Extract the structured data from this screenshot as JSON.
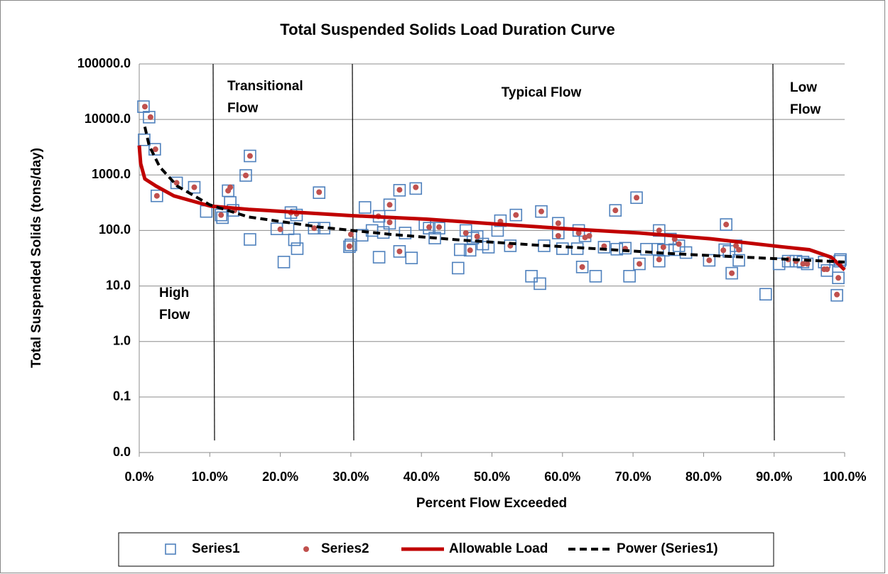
{
  "chart_data": {
    "type": "scatter",
    "title": "Total Suspended Solids Load Duration Curve",
    "x_label": "Percent Flow Exceeded",
    "y_label": "Total Suspended Solids (tons/day)",
    "log_scale": true,
    "grid": true,
    "legend": "bottom",
    "xlim": [
      0,
      100
    ],
    "xticks": [
      {
        "value": 0,
        "label": "0.0%"
      },
      {
        "value": 10,
        "label": "10.0%"
      },
      {
        "value": 20,
        "label": "20.0%"
      },
      {
        "value": 30,
        "label": "30.0%"
      },
      {
        "value": 40,
        "label": "40.0%"
      },
      {
        "value": 50,
        "label": "50.0%"
      },
      {
        "value": 60,
        "label": "60.0%"
      },
      {
        "value": 70,
        "label": "70.0%"
      },
      {
        "value": 80,
        "label": "80.0%"
      },
      {
        "value": 90,
        "label": "90.0%"
      },
      {
        "value": 100,
        "label": "100.0%"
      }
    ],
    "ylim": [
      0.01,
      100000
    ],
    "yticks": [
      {
        "value": 0.01,
        "label": "0.0"
      },
      {
        "value": 0.1,
        "label": "0.1"
      },
      {
        "value": 1,
        "label": "1.0"
      },
      {
        "value": 10,
        "label": "10.0"
      },
      {
        "value": 100,
        "label": "100.0"
      },
      {
        "value": 1000,
        "label": "1000.0"
      },
      {
        "value": 10000,
        "label": "10000.0"
      },
      {
        "value": 100000,
        "label": "100000.0"
      }
    ],
    "annotations": [
      "Transitional Flow",
      "Typical Flow",
      "Low Flow",
      "High Flow"
    ],
    "series": [
      {
        "name": "Series1",
        "color": "#4f81bd",
        "style": "square",
        "x": [
          0.6,
          1.4,
          0.7,
          2.2,
          2.5,
          5.3,
          7.8,
          9.5,
          11.6,
          11.8,
          12.6,
          12.9,
          13.3,
          15.1,
          15.7,
          15.7,
          19.5,
          20.5,
          21.1,
          21.5,
          22.0,
          22.3,
          22.4,
          24.8,
          25.5,
          26.2,
          29.8,
          30.0,
          32.0,
          31.6,
          33.0,
          34.0,
          34.0,
          34.6,
          35.5,
          35.5,
          36.9,
          36.9,
          37.7,
          38.6,
          39.2,
          40.5,
          41.1,
          41.9,
          42.5,
          45.2,
          45.5,
          46.3,
          46.9,
          47.3,
          47.9,
          48.7,
          49.5,
          50.8,
          51.2,
          52.6,
          53.4,
          55.6,
          56.8,
          57.0,
          57.4,
          59.4,
          59.4,
          60.0,
          62.1,
          62.3,
          62.8,
          63.2,
          64.7,
          65.9,
          67.5,
          67.7,
          68.9,
          69.5,
          70.5,
          70.9,
          71.9,
          73.5,
          73.7,
          73.7,
          74.3,
          75.3,
          75.9,
          76.5,
          77.5,
          80.8,
          83.0,
          83.2,
          83.6,
          84.0,
          84.6,
          85.0,
          88.8,
          90.7,
          92.0,
          93.1,
          94.1,
          94.7,
          97.1,
          97.5,
          98.9,
          99.1,
          99.3,
          99.4
        ],
        "values": [
          17000,
          11000,
          4300,
          2900,
          420,
          720,
          600,
          220,
          190,
          170,
          520,
          320,
          230,
          980,
          2200,
          69,
          107,
          27,
          107,
          210,
          68,
          190,
          47,
          110,
          480,
          110,
          51,
          55,
          260,
          82,
          100,
          180,
          33,
          92,
          290,
          135,
          530,
          42,
          90,
          32,
          570,
          130,
          110,
          73,
          110,
          21,
          45,
          100,
          44,
          73,
          78,
          57,
          50,
          100,
          150,
          53,
          190,
          15,
          11,
          220,
          53,
          135,
          90,
          47,
          47,
          100,
          22,
          80,
          15,
          50,
          230,
          46,
          48,
          15,
          390,
          25,
          46,
          46,
          100,
          28,
          44,
          70,
          45,
          53,
          40,
          29,
          45,
          128,
          42,
          17,
          53,
          29,
          7.1,
          25,
          28,
          28,
          27,
          25,
          27,
          19,
          6.8,
          14,
          28,
          30
        ]
      },
      {
        "name": "Series2",
        "color": "#c0504d",
        "style": "dot",
        "x": [
          0.8,
          1.6,
          2.3,
          2.5,
          5.3,
          7.8,
          11.6,
          12.6,
          12.9,
          13.5,
          15.1,
          15.7,
          20.0,
          21.5,
          22.3,
          24.8,
          25.5,
          29.8,
          30.0,
          33.9,
          35.5,
          35.5,
          36.9,
          36.9,
          39.2,
          41.1,
          42.5,
          46.3,
          46.9,
          47.9,
          51.2,
          52.6,
          53.4,
          57.0,
          59.4,
          59.4,
          62.3,
          62.8,
          63.2,
          63.8,
          65.9,
          67.5,
          68.9,
          70.5,
          70.9,
          73.7,
          73.7,
          74.3,
          75.9,
          76.5,
          80.8,
          82.8,
          83.2,
          84.0,
          84.6,
          85.0,
          92.0,
          93.1,
          94.1,
          94.7,
          97.1,
          97.5,
          98.9,
          99.1,
          99.3
        ],
        "values": [
          17000,
          11000,
          2900,
          420,
          720,
          600,
          190,
          520,
          600,
          230,
          980,
          2200,
          105,
          210,
          200,
          110,
          490,
          52,
          85,
          180,
          290,
          140,
          540,
          42,
          600,
          115,
          115,
          90,
          44,
          78,
          145,
          53,
          190,
          220,
          135,
          80,
          90,
          22,
          75,
          80,
          52,
          230,
          47,
          390,
          25,
          100,
          30,
          50,
          70,
          57,
          29,
          44,
          128,
          17,
          53,
          45,
          30,
          28,
          25,
          25,
          20,
          20,
          7,
          14,
          25
        ]
      },
      {
        "name": "Allowable Load",
        "color": "#c00000",
        "style": "line",
        "x": [
          0,
          0.2,
          0.8,
          2.4,
          4.9,
          10.1,
          15.5,
          30.2,
          40.7,
          50.8,
          60.8,
          70.9,
          81,
          91,
          95,
          98.1,
          100
        ],
        "values": [
          3400,
          1600,
          850,
          630,
          420,
          275,
          240,
          185,
          160,
          130,
          107,
          90,
          71,
          51,
          45,
          33,
          19.5
        ]
      },
      {
        "name": "Power (Series1)",
        "color": "#000000",
        "style": "dashed",
        "x": [
          0.8,
          1.4,
          2.9,
          5.4,
          10,
          15.5,
          25.6,
          35.6,
          45.7,
          55.8,
          65.9,
          76,
          86,
          100
        ],
        "values": [
          7400,
          3400,
          1400,
          630,
          290,
          175,
          115,
          85,
          67,
          55,
          46,
          38,
          33,
          27
        ]
      }
    ]
  }
}
